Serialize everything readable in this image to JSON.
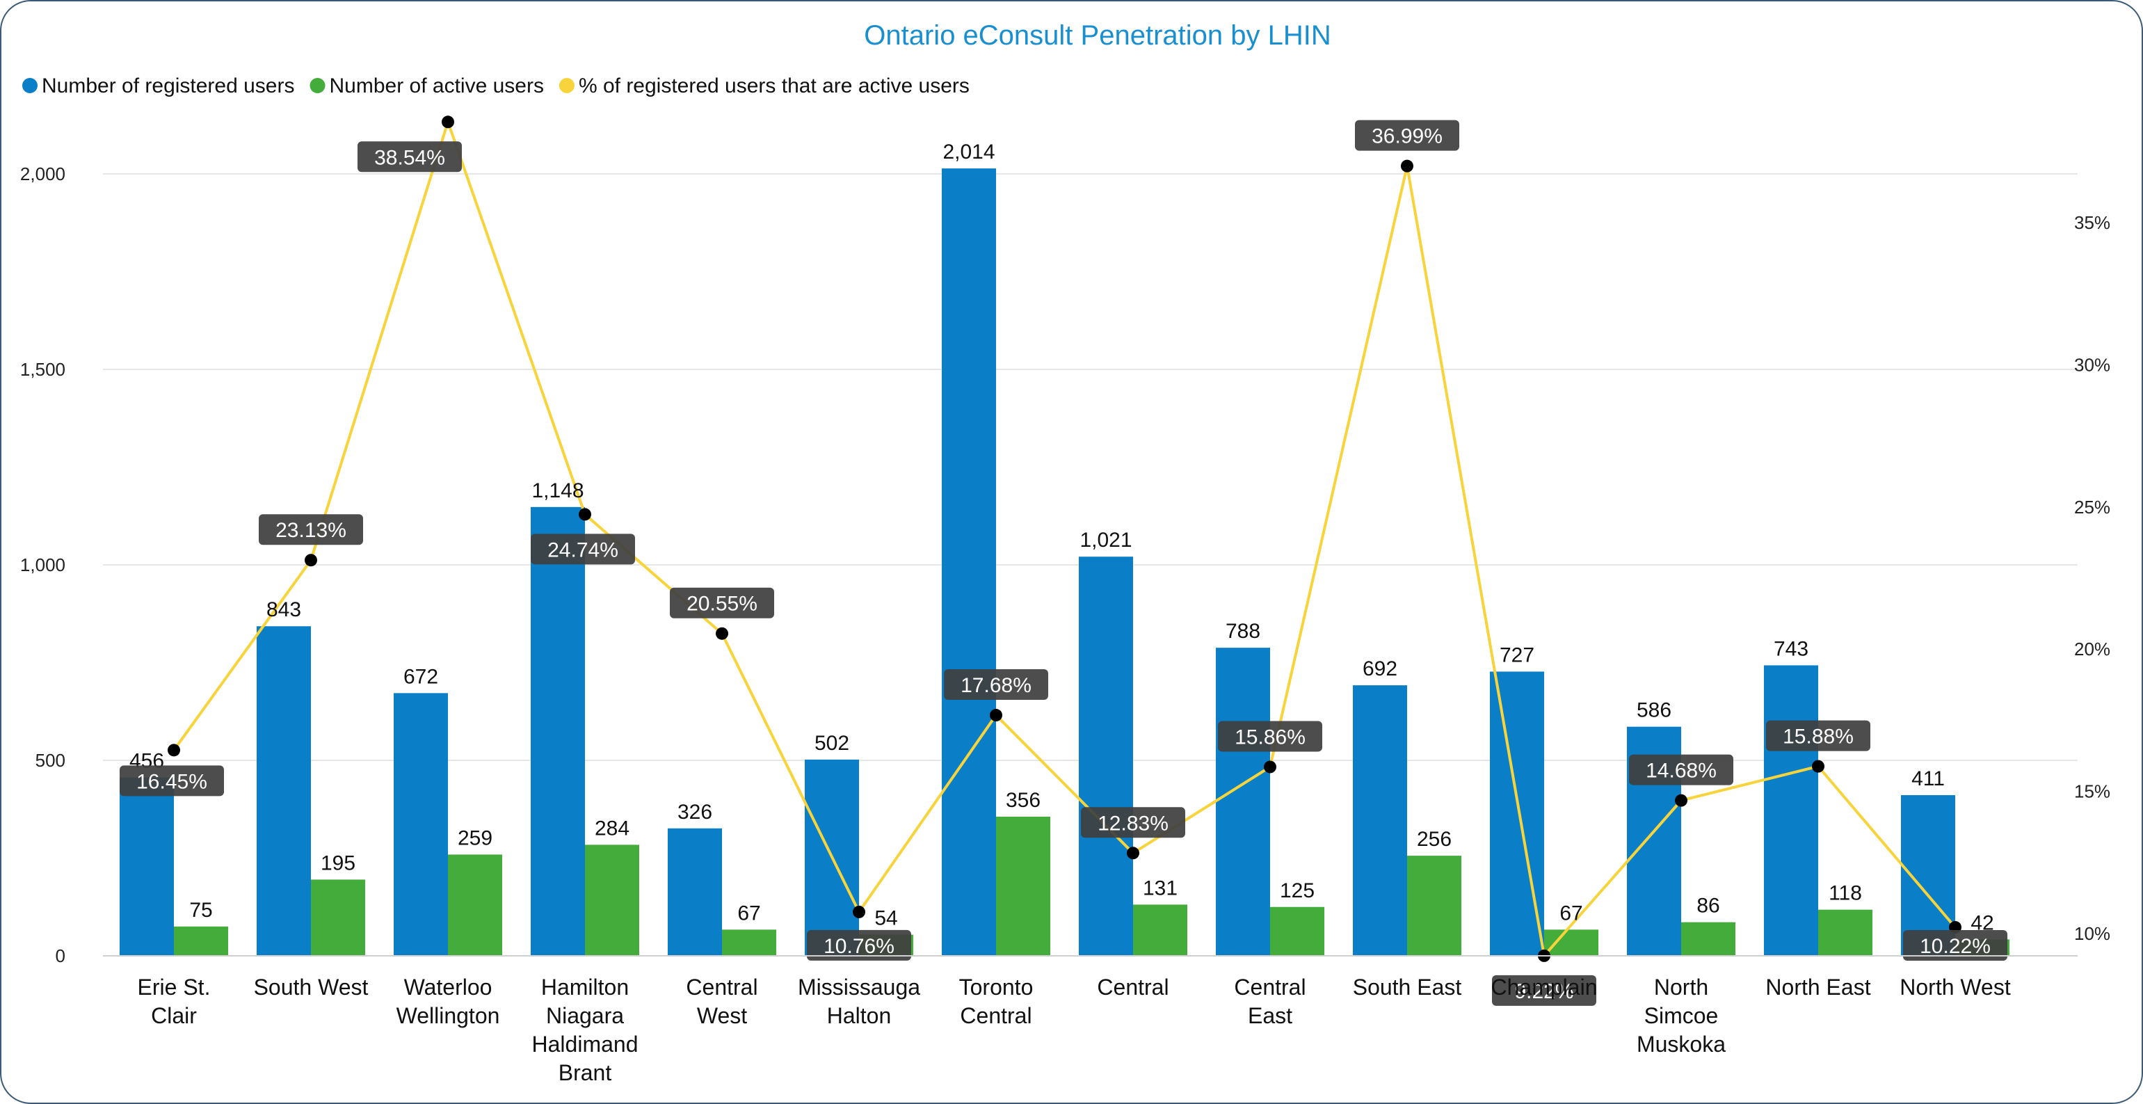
{
  "chart_data": {
    "type": "bar",
    "title": "Ontario eConsult Penetration by LHIN",
    "legend_position": "top-left",
    "categories": [
      "Erie St. Clair",
      "South West",
      "Waterloo Wellington",
      "Hamilton Niagara Haldimand Brant",
      "Central West",
      "Mississauga Halton",
      "Toronto Central",
      "Central",
      "Central East",
      "South East",
      "Champlain",
      "North Simcoe Muskoka",
      "North East",
      "North West"
    ],
    "series": [
      {
        "name": "Number of registered users",
        "type": "bar",
        "axis": "left",
        "color": "#0A7FC8",
        "values": [
          456,
          843,
          672,
          1148,
          326,
          502,
          2014,
          1021,
          788,
          692,
          727,
          586,
          743,
          411
        ],
        "labels": [
          "456",
          "843",
          "672",
          "1,148",
          "326",
          "502",
          "2,014",
          "1,021",
          "788",
          "692",
          "727",
          "586",
          "743",
          "411"
        ]
      },
      {
        "name": "Number of active users",
        "type": "bar",
        "axis": "left",
        "color": "#43AC3A",
        "values": [
          75,
          195,
          259,
          284,
          67,
          54,
          356,
          131,
          125,
          256,
          67,
          86,
          118,
          42
        ],
        "labels": [
          "75",
          "195",
          "259",
          "284",
          "67",
          "54",
          "356",
          "131",
          "125",
          "256",
          "67",
          "86",
          "118",
          "42"
        ]
      },
      {
        "name": "% of registered users that are active users",
        "type": "line",
        "axis": "right",
        "color": "#F7D43C",
        "values": [
          16.45,
          23.13,
          38.54,
          24.74,
          20.55,
          10.76,
          17.68,
          12.83,
          15.86,
          36.99,
          9.22,
          14.68,
          15.88,
          10.22
        ],
        "labels": [
          "16.45%",
          "23.13%",
          "38.54%",
          "24.74%",
          "20.55%",
          "10.76%",
          "17.68%",
          "12.83%",
          "15.86%",
          "36.99%",
          "9.22%",
          "14.68%",
          "15.88%",
          "10.22%"
        ]
      }
    ],
    "y_left": {
      "min": 0,
      "max": 2000,
      "ticks": [
        0,
        500,
        1000,
        1500,
        2000
      ],
      "tick_labels": [
        "0",
        "500",
        "1,000",
        "1,500",
        "2,000"
      ]
    },
    "y_right": {
      "min": 9.2,
      "max": 36.1,
      "ticks": [
        10,
        15,
        20,
        25,
        30,
        35
      ],
      "tick_labels": [
        "10%",
        "15%",
        "20%",
        "25%",
        "30%",
        "35%"
      ]
    },
    "grid": true
  }
}
